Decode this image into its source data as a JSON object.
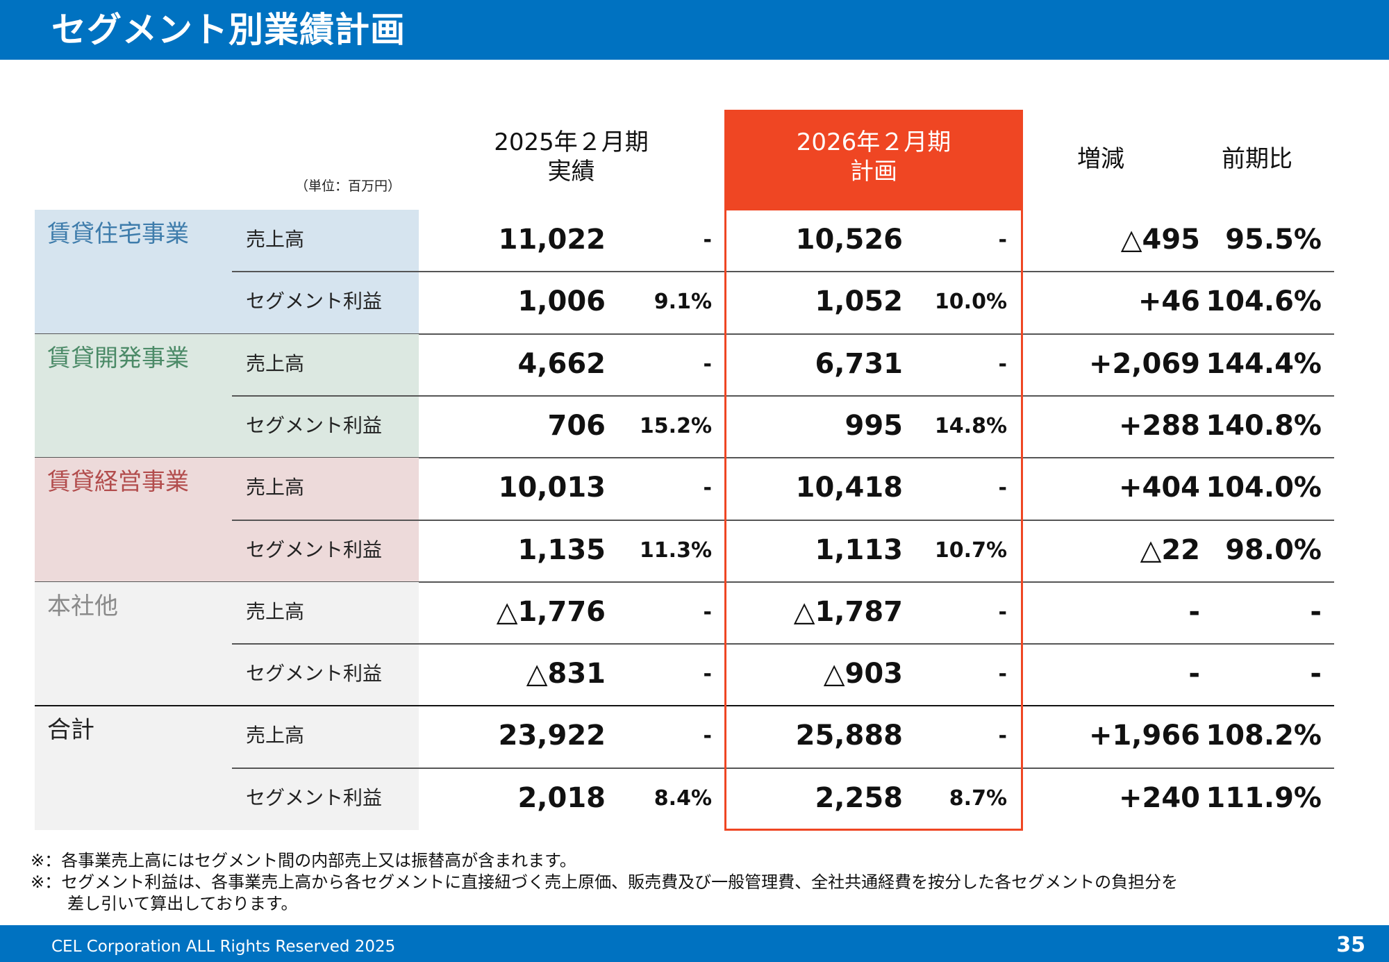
{
  "header": {
    "title": "セグメント別業績計画"
  },
  "table": {
    "unit_note": "（単位：百万円）",
    "columns": {
      "prev_line1": "2025年２月期",
      "prev_line2": "実績",
      "plan_line1": "2026年２月期",
      "plan_line2": "計画",
      "change": "増減",
      "ratio": "前期比"
    },
    "segments": [
      {
        "name": "賃貸住宅事業",
        "bg_color": "#d6e4ef",
        "text_color": "#3e7cab",
        "rows": [
          {
            "metric": "売上高",
            "prev": "11,022",
            "prev_rate": "-",
            "plan": "10,526",
            "plan_rate": "-",
            "change": "△495",
            "ratio": "95.5%"
          },
          {
            "metric": "セグメント利益",
            "prev": "1,006",
            "prev_rate": "9.1%",
            "plan": "1,052",
            "plan_rate": "10.0%",
            "change": "+46",
            "ratio": "104.6%"
          }
        ]
      },
      {
        "name": "賃貸開発事業",
        "bg_color": "#dce8e1",
        "text_color": "#4b8a67",
        "rows": [
          {
            "metric": "売上高",
            "prev": "4,662",
            "prev_rate": "-",
            "plan": "6,731",
            "plan_rate": "-",
            "change": "+2,069",
            "ratio": "144.4%"
          },
          {
            "metric": "セグメント利益",
            "prev": "706",
            "prev_rate": "15.2%",
            "plan": "995",
            "plan_rate": "14.8%",
            "change": "+288",
            "ratio": "140.8%"
          }
        ]
      },
      {
        "name": "賃貸経営事業",
        "bg_color": "#eddada",
        "text_color": "#b24c4c",
        "rows": [
          {
            "metric": "売上高",
            "prev": "10,013",
            "prev_rate": "-",
            "plan": "10,418",
            "plan_rate": "-",
            "change": "+404",
            "ratio": "104.0%"
          },
          {
            "metric": "セグメント利益",
            "prev": "1,135",
            "prev_rate": "11.3%",
            "plan": "1,113",
            "plan_rate": "10.7%",
            "change": "△22",
            "ratio": "98.0%"
          }
        ]
      },
      {
        "name": "本社他",
        "bg_color": "#f2f2f2",
        "text_color": "#8a8a8a",
        "rows": [
          {
            "metric": "売上高",
            "prev": "△1,776",
            "prev_rate": "-",
            "plan": "△1,787",
            "plan_rate": "-",
            "change": "-",
            "ratio": "-"
          },
          {
            "metric": "セグメント利益",
            "prev": "△831",
            "prev_rate": "-",
            "plan": "△903",
            "plan_rate": "-",
            "change": "-",
            "ratio": "-"
          }
        ]
      },
      {
        "name": "合計",
        "bg_color": "#f2f2f2",
        "text_color": "#222222",
        "rows": [
          {
            "metric": "売上高",
            "prev": "23,922",
            "prev_rate": "-",
            "plan": "25,888",
            "plan_rate": "-",
            "change": "+1,966",
            "ratio": "108.2%"
          },
          {
            "metric": "セグメント利益",
            "prev": "2,018",
            "prev_rate": "8.4%",
            "plan": "2,258",
            "plan_rate": "8.7%",
            "change": "+240",
            "ratio": "111.9%"
          }
        ]
      }
    ]
  },
  "footnotes": {
    "note1": "※：各事業売上高にはセグメント間の内部売上又は振替高が含まれます。",
    "note2": "※：セグメント利益は、各事業売上高から各セグメントに直接紐づく売上原価、販売費及び一般管理費、全社共通経費を按分した各セグメントの負担分を",
    "note2_cont": "差し引いて算出しております。"
  },
  "footer": {
    "copyright": "CEL Corporation ALL Rights Reserved 2025",
    "page_number": "35"
  },
  "colors": {
    "brand_blue": "#0072c1",
    "plan_highlight": "#ef4623"
  }
}
